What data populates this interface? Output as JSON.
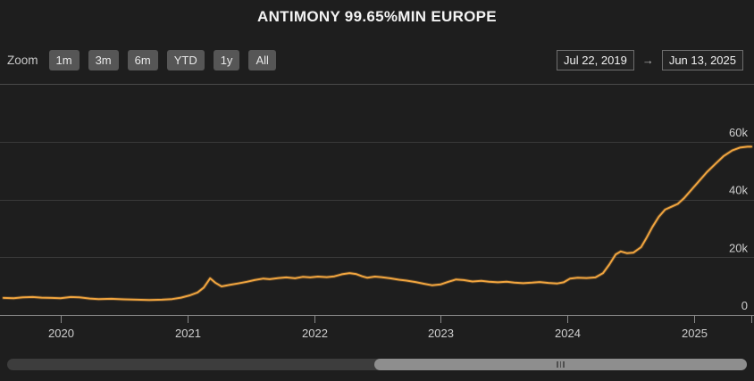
{
  "header": {
    "title": "ANTIMONY 99.65%MIN EUROPE"
  },
  "toolbar": {
    "zoom_label": "Zoom",
    "buttons": [
      "1m",
      "3m",
      "6m",
      "YTD",
      "1y",
      "All"
    ],
    "range": {
      "from": "Jul 22, 2019",
      "arrow": "→",
      "to": "Jun 13, 2025"
    }
  },
  "colors": {
    "background": "#1e1e1e",
    "line": "#f1a53f",
    "gridline": "#3a3a3a",
    "top_gridline": "#4a4a4a",
    "axis_line": "#8a8a8a",
    "axis_text": "#cfcfcf",
    "scroll_track": "#3d3d3d",
    "scroll_thumb": "#8e8e8e"
  },
  "chart_data": {
    "type": "line",
    "title": "ANTIMONY 99.65%MIN EUROPE",
    "xlabel": "",
    "ylabel": "",
    "legend": "none",
    "grid": "horizontal",
    "xlim": [
      2019.55,
      2025.45
    ],
    "ylim": [
      0,
      82000
    ],
    "x_range_labels": [
      "Jul 22, 2019",
      "Jun 13, 2025"
    ],
    "x_ticks": [
      {
        "t": 2020,
        "label": "2020"
      },
      {
        "t": 2021,
        "label": "2021"
      },
      {
        "t": 2022,
        "label": "2022"
      },
      {
        "t": 2023,
        "label": "2023"
      },
      {
        "t": 2024,
        "label": "2024"
      },
      {
        "t": 2025,
        "label": "2025"
      }
    ],
    "y_ticks": [
      {
        "v": 0,
        "label": "0"
      },
      {
        "v": 20000,
        "label": "20k"
      },
      {
        "v": 40000,
        "label": "40k"
      },
      {
        "v": 60000,
        "label": "60k"
      }
    ],
    "grid_values": [
      20000,
      40000,
      60000,
      80000
    ],
    "series": [
      {
        "name": "ANTIMONY 99.65%MIN EUROPE",
        "color": "#f1a53f",
        "points": [
          [
            2019.55,
            5900
          ],
          [
            2019.63,
            5800
          ],
          [
            2019.7,
            6100
          ],
          [
            2019.78,
            6200
          ],
          [
            2019.85,
            6000
          ],
          [
            2019.93,
            5900
          ],
          [
            2020.0,
            5800
          ],
          [
            2020.08,
            6200
          ],
          [
            2020.15,
            6100
          ],
          [
            2020.23,
            5700
          ],
          [
            2020.3,
            5500
          ],
          [
            2020.4,
            5600
          ],
          [
            2020.5,
            5400
          ],
          [
            2020.6,
            5300
          ],
          [
            2020.7,
            5200
          ],
          [
            2020.8,
            5300
          ],
          [
            2020.88,
            5500
          ],
          [
            2020.95,
            6000
          ],
          [
            2021.02,
            6800
          ],
          [
            2021.08,
            7800
          ],
          [
            2021.13,
            9500
          ],
          [
            2021.18,
            12700
          ],
          [
            2021.22,
            11200
          ],
          [
            2021.27,
            9900
          ],
          [
            2021.33,
            10400
          ],
          [
            2021.4,
            10900
          ],
          [
            2021.47,
            11500
          ],
          [
            2021.53,
            12100
          ],
          [
            2021.6,
            12600
          ],
          [
            2021.65,
            12400
          ],
          [
            2021.72,
            12800
          ],
          [
            2021.78,
            13000
          ],
          [
            2021.85,
            12700
          ],
          [
            2021.91,
            13200
          ],
          [
            2021.97,
            13000
          ],
          [
            2022.03,
            13300
          ],
          [
            2022.1,
            13100
          ],
          [
            2022.16,
            13400
          ],
          [
            2022.22,
            14100
          ],
          [
            2022.28,
            14500
          ],
          [
            2022.33,
            14200
          ],
          [
            2022.38,
            13400
          ],
          [
            2022.42,
            12900
          ],
          [
            2022.48,
            13300
          ],
          [
            2022.53,
            13100
          ],
          [
            2022.6,
            12700
          ],
          [
            2022.67,
            12200
          ],
          [
            2022.73,
            11900
          ],
          [
            2022.8,
            11400
          ],
          [
            2022.87,
            10800
          ],
          [
            2022.93,
            10300
          ],
          [
            2023.0,
            10600
          ],
          [
            2023.06,
            11500
          ],
          [
            2023.12,
            12300
          ],
          [
            2023.18,
            12100
          ],
          [
            2023.25,
            11600
          ],
          [
            2023.32,
            11800
          ],
          [
            2023.38,
            11500
          ],
          [
            2023.45,
            11300
          ],
          [
            2023.52,
            11500
          ],
          [
            2023.58,
            11200
          ],
          [
            2023.65,
            11000
          ],
          [
            2023.72,
            11200
          ],
          [
            2023.78,
            11400
          ],
          [
            2023.85,
            11100
          ],
          [
            2023.92,
            10900
          ],
          [
            2023.97,
            11300
          ],
          [
            2024.02,
            12600
          ],
          [
            2024.08,
            12900
          ],
          [
            2024.15,
            12800
          ],
          [
            2024.22,
            13000
          ],
          [
            2024.28,
            14500
          ],
          [
            2024.33,
            17500
          ],
          [
            2024.38,
            21000
          ],
          [
            2024.42,
            22000
          ],
          [
            2024.47,
            21400
          ],
          [
            2024.52,
            21600
          ],
          [
            2024.58,
            23500
          ],
          [
            2024.62,
            26500
          ],
          [
            2024.67,
            30500
          ],
          [
            2024.72,
            34000
          ],
          [
            2024.77,
            36500
          ],
          [
            2024.82,
            37500
          ],
          [
            2024.87,
            38500
          ],
          [
            2024.92,
            40500
          ],
          [
            2024.97,
            43000
          ],
          [
            2025.03,
            46000
          ],
          [
            2025.1,
            49500
          ],
          [
            2025.17,
            52500
          ],
          [
            2025.23,
            55000
          ],
          [
            2025.3,
            57000
          ],
          [
            2025.36,
            58000
          ],
          [
            2025.42,
            58300
          ],
          [
            2025.45,
            58300
          ]
        ]
      }
    ]
  }
}
